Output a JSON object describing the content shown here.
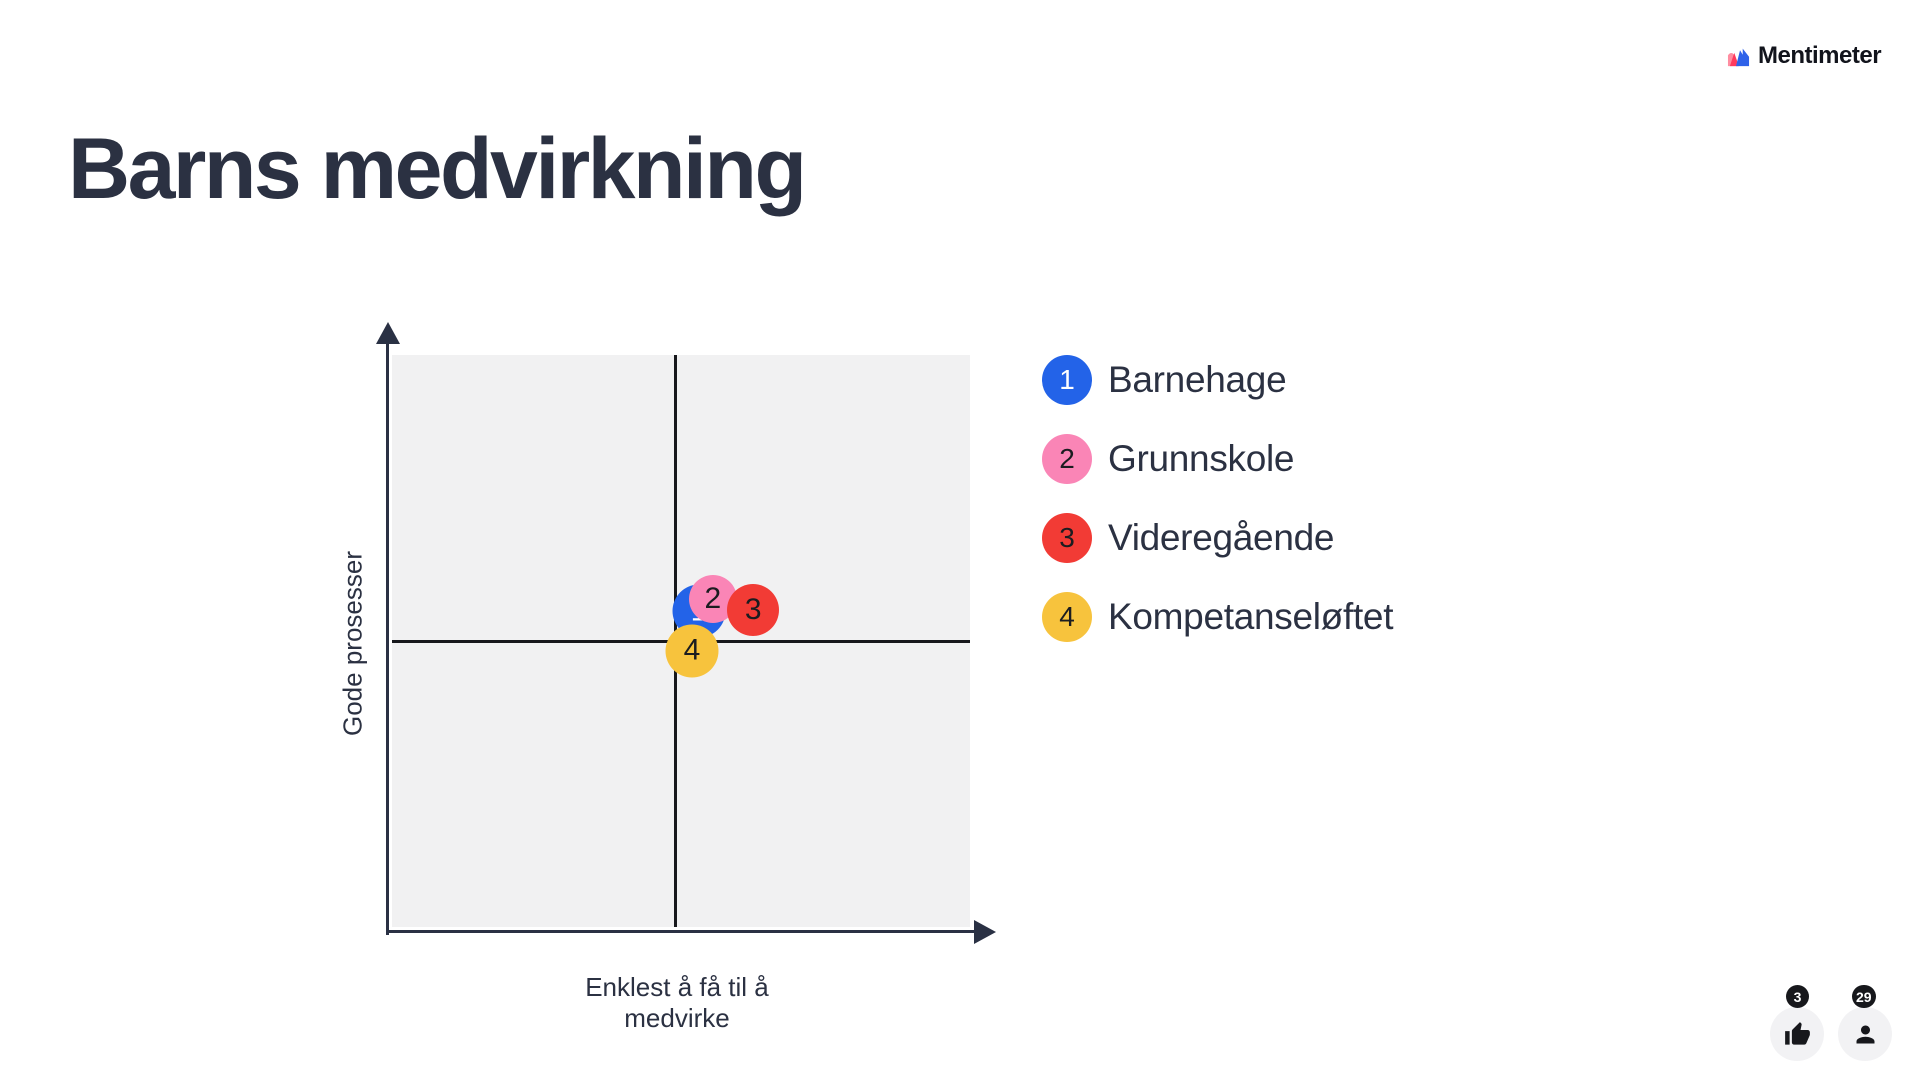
{
  "brand": {
    "name": "Mentimeter"
  },
  "slide": {
    "title": "Barns medvirkning"
  },
  "chart_data": {
    "type": "scatter",
    "subtype": "2x2-quadrant",
    "title": "Barns medvirkning",
    "xlabel": "Enklest å få til å medvirke",
    "ylabel": "Gode prosesser",
    "axis_ticks": "none (unlabeled quadrant axes, arrowheads up and right)",
    "grid": "single vertical and horizontal divider crossing at plot center",
    "plot_background": "#f1f1f2",
    "xlim_note": "positions given as percent of plot area from top-left",
    "points": [
      {
        "num": "1",
        "label": "Barnehage",
        "color": "#2363e8",
        "num_color": "#ffffff",
        "x_pct": 53.1,
        "y_pct": 44.8,
        "size": 53,
        "z": 1
      },
      {
        "num": "2",
        "label": "Grunnskole",
        "color": "#fa85b6",
        "num_color": "#1b1c20",
        "x_pct": 55.5,
        "y_pct": 42.7,
        "size": 48,
        "z": 2
      },
      {
        "num": "3",
        "label": "Videregående",
        "color": "#f23b35",
        "num_color": "#1b1c20",
        "x_pct": 62.5,
        "y_pct": 44.6,
        "size": 52,
        "z": 3
      },
      {
        "num": "4",
        "label": "Kompetanseløftet",
        "color": "#f7c33d",
        "num_color": "#1b1c20",
        "x_pct": 51.9,
        "y_pct": 51.7,
        "size": 53,
        "z": 4
      }
    ],
    "legend_position": "right of plot, top-aligned"
  },
  "engagement": {
    "likes": "3",
    "likes_icon": "thumbs-up-icon",
    "participants": "29",
    "participants_icon": "person-icon"
  },
  "colors": {
    "title_text": "#2b3142",
    "axis": "#2a3144",
    "divider": "#17181c",
    "badge_bg": "#17181c",
    "button_bg": "#f2f2f4"
  }
}
